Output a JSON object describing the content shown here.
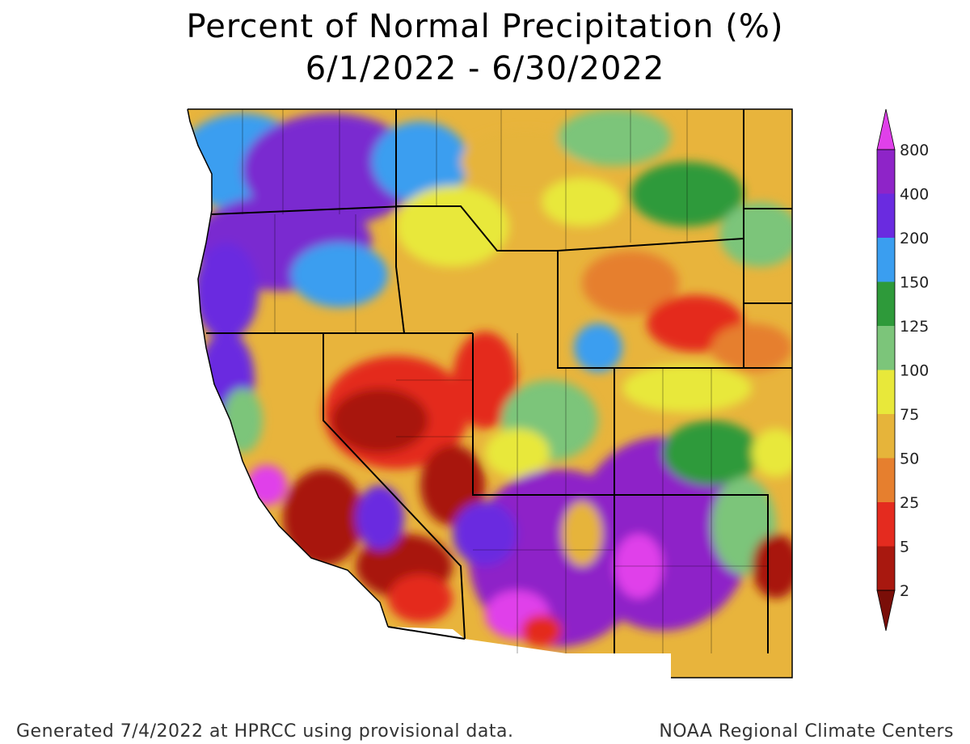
{
  "title": {
    "line1": "Percent of Normal Precipitation (%)",
    "line2": "6/1/2022 - 6/30/2022"
  },
  "legend": {
    "bins": [
      {
        "label": "800",
        "color": "#e040ea"
      },
      {
        "label": "400",
        "color": "#8e24c8"
      },
      {
        "label": "200",
        "color": "#6a2be0"
      },
      {
        "label": "150",
        "color": "#3a9ef0"
      },
      {
        "label": "125",
        "color": "#2e9a3a"
      },
      {
        "label": "100",
        "color": "#7cc57a"
      },
      {
        "label": "75",
        "color": "#e8e83a"
      },
      {
        "label": "50",
        "color": "#e6b43a"
      },
      {
        "label": "25",
        "color": "#e67f2e"
      },
      {
        "label": "5",
        "color": "#e42b1f"
      },
      {
        "label": "2",
        "color": "#a8180f"
      }
    ],
    "bottom_color": "#7a0e08"
  },
  "footer": {
    "left": "Generated 7/4/2022 at HPRCC using provisional data.",
    "right": "NOAA Regional Climate Centers"
  },
  "colors": {
    "ocean": "#ffffff",
    "border": "#000000",
    "land_base": "#e8b43c"
  }
}
